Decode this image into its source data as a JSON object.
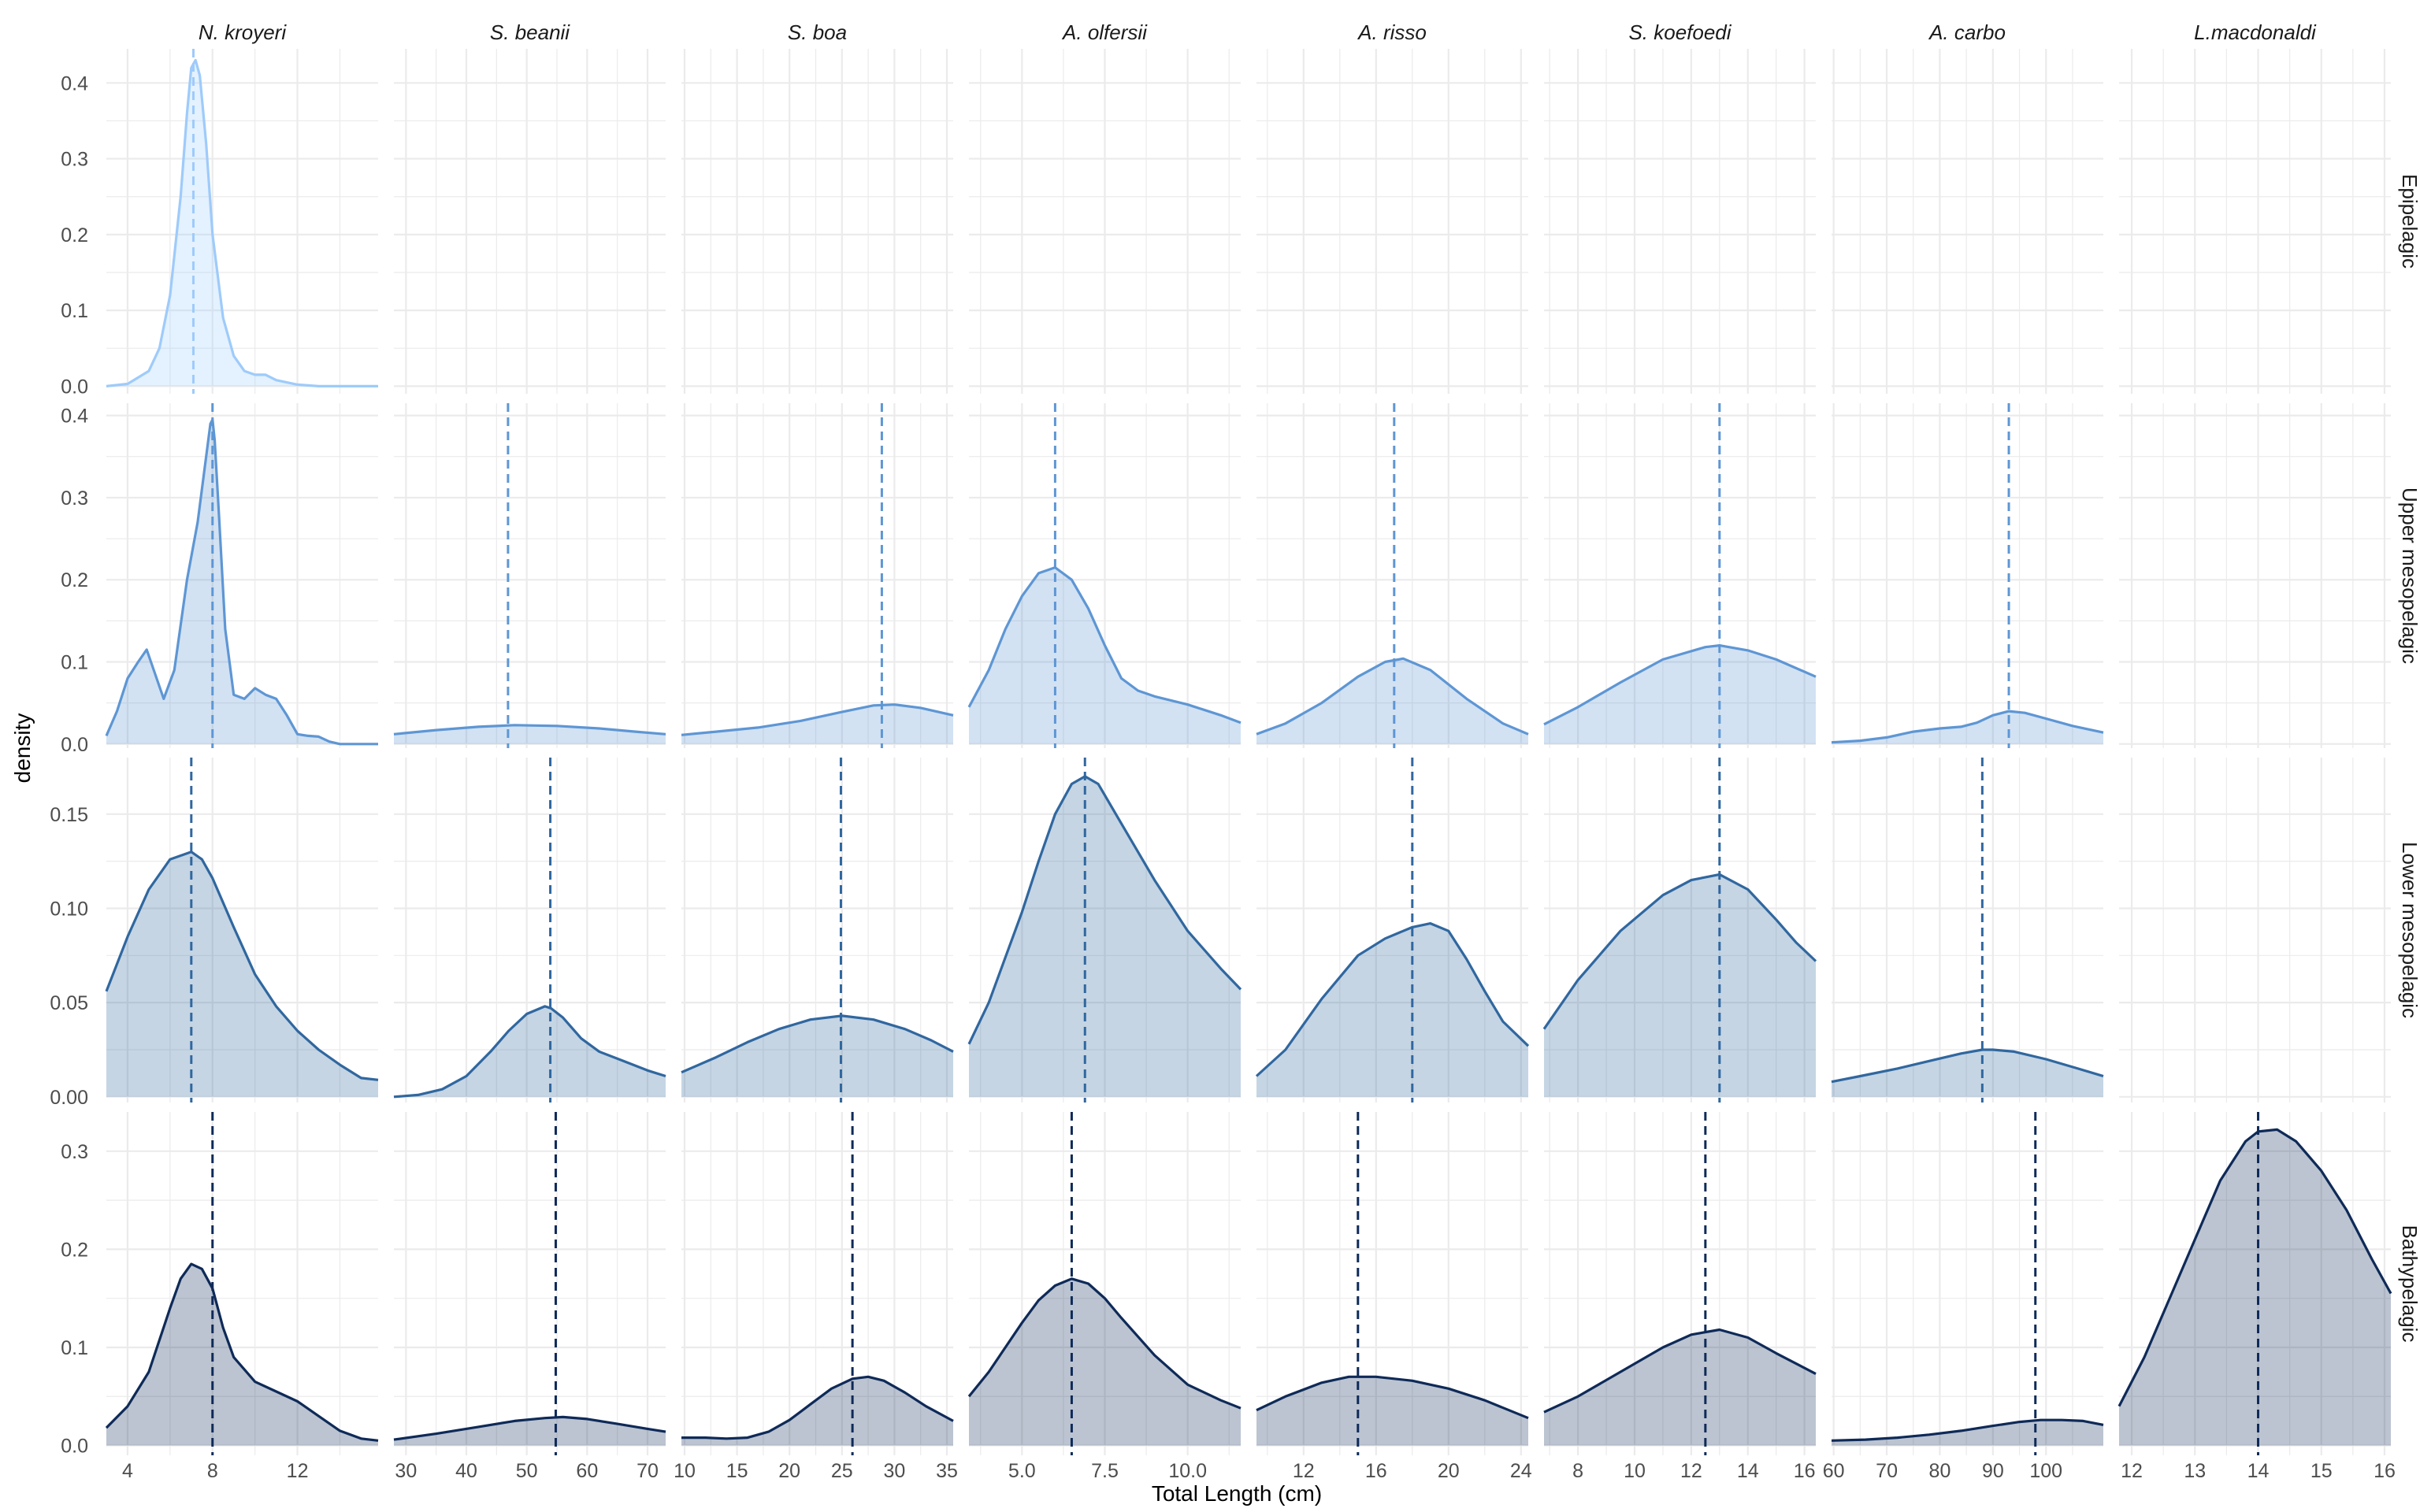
{
  "chart_data": {
    "type": "area",
    "xlabel": "Total Length (cm)",
    "ylabel": "density",
    "colors": {
      "Epipelagic": "#9ecbfa",
      "Upper mesopelagic": "#5e96d4",
      "Lower mesopelagic": "#30679f",
      "Bathypelagic": "#0e2a58",
      "grid": "#ebebeb",
      "tick_text": "#4d4d4d"
    },
    "species": [
      {
        "name": "N. kroyeri",
        "xlim": [
          3.0,
          15.8
        ],
        "ticks": [
          4,
          8,
          12
        ],
        "tick_labels": [
          "4",
          "8",
          "12"
        ]
      },
      {
        "name": "S. beanii",
        "xlim": [
          28,
          73
        ],
        "ticks": [
          30,
          40,
          50,
          60,
          70
        ],
        "tick_labels": [
          "30",
          "40",
          "50",
          "60",
          "70"
        ]
      },
      {
        "name": "S. boa",
        "xlim": [
          9.7,
          35.6
        ],
        "ticks": [
          10,
          15,
          20,
          25,
          30,
          35
        ],
        "tick_labels": [
          "10",
          "15",
          "20",
          "25",
          "30",
          "35"
        ]
      },
      {
        "name": "A. olfersii",
        "xlim": [
          3.4,
          11.6
        ],
        "ticks": [
          5.0,
          7.5,
          10.0
        ],
        "tick_labels": [
          "5.0",
          "7.5",
          "10.0"
        ]
      },
      {
        "name": "A. risso",
        "xlim": [
          9.4,
          24.4
        ],
        "ticks": [
          12,
          16,
          20,
          24
        ],
        "tick_labels": [
          "12",
          "16",
          "20",
          "24"
        ]
      },
      {
        "name": "S. koefoedi",
        "xlim": [
          6.8,
          16.4
        ],
        "ticks": [
          8,
          10,
          12,
          14,
          16
        ],
        "tick_labels": [
          "8",
          "10",
          "12",
          "14",
          "16"
        ]
      },
      {
        "name": "A. carbo",
        "xlim": [
          59.6,
          110.8
        ],
        "ticks": [
          60,
          70,
          80,
          90,
          100
        ],
        "tick_labels": [
          "60",
          "70",
          "80",
          "90",
          "100"
        ]
      },
      {
        "name": "L.macdonaldi",
        "xlim": [
          11.8,
          16.1
        ],
        "ticks": [
          12,
          13,
          14,
          15,
          16
        ],
        "tick_labels": [
          "12",
          "13",
          "14",
          "15",
          "16"
        ]
      }
    ],
    "zones": [
      {
        "name": "Epipelagic",
        "ylim": [
          -0.01,
          0.445
        ],
        "yticks": [
          0.0,
          0.1,
          0.2,
          0.3,
          0.4
        ],
        "ytick_labels": [
          "0.0",
          "0.1",
          "0.2",
          "0.3",
          "0.4"
        ]
      },
      {
        "name": "Upper mesopelagic",
        "ylim": [
          -0.005,
          0.415
        ],
        "yticks": [
          0.0,
          0.1,
          0.2,
          0.3,
          0.4
        ],
        "ytick_labels": [
          "0.0",
          "0.1",
          "0.2",
          "0.3",
          "0.4"
        ]
      },
      {
        "name": "Lower mesopelagic",
        "ylim": [
          -0.003,
          0.18
        ],
        "yticks": [
          0.0,
          0.05,
          0.1,
          0.15
        ],
        "ytick_labels": [
          "0.00",
          "0.05",
          "0.10",
          "0.15"
        ]
      },
      {
        "name": "Bathypelagic",
        "ylim": [
          -0.01,
          0.34
        ],
        "yticks": [
          0.0,
          0.1,
          0.2,
          0.3
        ],
        "ytick_labels": [
          "0.0",
          "0.1",
          "0.2",
          "0.3"
        ]
      }
    ],
    "panels": [
      {
        "zone": "Epipelagic",
        "species": "N. kroyeri",
        "mean": 7.1,
        "x": [
          3.0,
          4.0,
          5.0,
          5.5,
          6.0,
          6.5,
          6.8,
          7.0,
          7.2,
          7.4,
          7.7,
          8.0,
          8.5,
          9.0,
          9.5,
          10.0,
          10.5,
          11.0,
          12.0,
          13.0,
          14.0,
          15.0,
          15.8
        ],
        "y": [
          0.0,
          0.003,
          0.02,
          0.05,
          0.12,
          0.25,
          0.36,
          0.42,
          0.43,
          0.41,
          0.32,
          0.2,
          0.09,
          0.04,
          0.02,
          0.015,
          0.015,
          0.008,
          0.002,
          0.0,
          0.0,
          0.0,
          0.0
        ]
      },
      {
        "zone": "Upper mesopelagic",
        "species": "N. kroyeri",
        "mean": 8.0,
        "x": [
          3.0,
          3.5,
          4.0,
          4.5,
          4.9,
          5.3,
          5.7,
          6.2,
          6.8,
          7.3,
          7.7,
          7.9,
          8.0,
          8.1,
          8.3,
          8.6,
          9.0,
          9.5,
          10.0,
          10.5,
          11.0,
          11.5,
          12.0,
          12.5,
          13.0,
          13.5,
          14.0,
          15.0,
          15.8
        ],
        "y": [
          0.01,
          0.04,
          0.08,
          0.1,
          0.115,
          0.085,
          0.055,
          0.09,
          0.2,
          0.27,
          0.35,
          0.39,
          0.395,
          0.37,
          0.28,
          0.14,
          0.06,
          0.055,
          0.068,
          0.06,
          0.055,
          0.035,
          0.012,
          0.01,
          0.009,
          0.003,
          0.0,
          0.0,
          0.0
        ]
      },
      {
        "zone": "Lower mesopelagic",
        "species": "N. kroyeri",
        "mean": 7.0,
        "x": [
          3.0,
          4.0,
          5.0,
          6.0,
          7.0,
          7.5,
          8.0,
          9.0,
          10.0,
          11.0,
          12.0,
          13.0,
          14.0,
          15.0,
          15.8
        ],
        "y": [
          0.056,
          0.085,
          0.11,
          0.126,
          0.13,
          0.126,
          0.116,
          0.09,
          0.065,
          0.048,
          0.035,
          0.025,
          0.017,
          0.01,
          0.009
        ]
      },
      {
        "zone": "Bathypelagic",
        "species": "N. kroyeri",
        "mean": 8.0,
        "x": [
          3.0,
          4.0,
          5.0,
          6.0,
          6.5,
          7.0,
          7.5,
          8.0,
          8.5,
          9.0,
          10.0,
          11.0,
          12.0,
          13.0,
          14.0,
          15.0,
          15.8
        ],
        "y": [
          0.018,
          0.04,
          0.075,
          0.14,
          0.17,
          0.185,
          0.18,
          0.16,
          0.12,
          0.09,
          0.065,
          0.055,
          0.045,
          0.03,
          0.015,
          0.007,
          0.005
        ]
      },
      {
        "zone": "Upper mesopelagic",
        "species": "S. beanii",
        "mean": 46.9,
        "x": [
          28,
          35,
          42,
          48,
          55,
          62,
          68,
          73
        ],
        "y": [
          0.012,
          0.017,
          0.021,
          0.023,
          0.022,
          0.019,
          0.015,
          0.012
        ]
      },
      {
        "zone": "Lower mesopelagic",
        "species": "S. beanii",
        "mean": 53.9,
        "x": [
          28,
          32,
          36,
          40,
          44,
          47,
          50,
          53,
          54,
          56,
          59,
          62,
          66,
          70,
          73
        ],
        "y": [
          0.0,
          0.001,
          0.004,
          0.011,
          0.024,
          0.035,
          0.044,
          0.048,
          0.047,
          0.042,
          0.031,
          0.024,
          0.019,
          0.014,
          0.011
        ]
      },
      {
        "zone": "Bathypelagic",
        "species": "S. beanii",
        "mean": 54.8,
        "x": [
          28,
          35,
          42,
          48,
          53,
          56,
          60,
          65,
          70,
          73
        ],
        "y": [
          0.006,
          0.012,
          0.019,
          0.025,
          0.028,
          0.029,
          0.027,
          0.022,
          0.017,
          0.014
        ]
      },
      {
        "zone": "Upper mesopelagic",
        "species": "S. boa",
        "mean": 28.8,
        "x": [
          9.7,
          13.0,
          17.0,
          21.0,
          25.0,
          28.0,
          30.0,
          32.5,
          35.6
        ],
        "y": [
          0.011,
          0.015,
          0.02,
          0.028,
          0.039,
          0.047,
          0.048,
          0.044,
          0.035
        ]
      },
      {
        "zone": "Lower mesopelagic",
        "species": "S. boa",
        "mean": 24.9,
        "x": [
          9.7,
          13.0,
          16.0,
          19.0,
          22.0,
          25.0,
          28.0,
          31.0,
          33.5,
          35.6
        ],
        "y": [
          0.013,
          0.021,
          0.029,
          0.036,
          0.041,
          0.043,
          0.041,
          0.036,
          0.03,
          0.024
        ]
      },
      {
        "zone": "Bathypelagic",
        "species": "S. boa",
        "mean": 26.0,
        "x": [
          9.7,
          12.0,
          14.0,
          16.0,
          18.0,
          20.0,
          22.0,
          24.0,
          26.0,
          27.5,
          29.0,
          31.0,
          33.0,
          35.6
        ],
        "y": [
          0.008,
          0.008,
          0.007,
          0.008,
          0.014,
          0.026,
          0.042,
          0.058,
          0.068,
          0.07,
          0.066,
          0.054,
          0.04,
          0.025
        ]
      },
      {
        "zone": "Upper mesopelagic",
        "species": "A. olfersii",
        "mean": 6.0,
        "x": [
          3.4,
          4.0,
          4.5,
          5.0,
          5.5,
          6.0,
          6.5,
          7.0,
          7.5,
          8.0,
          8.5,
          9.0,
          10.0,
          11.0,
          11.6
        ],
        "y": [
          0.045,
          0.09,
          0.14,
          0.18,
          0.208,
          0.215,
          0.2,
          0.165,
          0.12,
          0.08,
          0.065,
          0.058,
          0.048,
          0.035,
          0.026
        ]
      },
      {
        "zone": "Lower mesopelagic",
        "species": "A. olfersii",
        "mean": 6.9,
        "x": [
          3.4,
          4.0,
          5.0,
          5.5,
          6.0,
          6.5,
          6.9,
          7.3,
          8.0,
          9.0,
          10.0,
          11.0,
          11.6
        ],
        "y": [
          0.028,
          0.05,
          0.098,
          0.125,
          0.15,
          0.166,
          0.17,
          0.166,
          0.145,
          0.115,
          0.088,
          0.068,
          0.057
        ]
      },
      {
        "zone": "Bathypelagic",
        "species": "A. olfersii",
        "mean": 6.5,
        "x": [
          3.4,
          4.0,
          5.0,
          5.5,
          6.0,
          6.5,
          7.0,
          7.5,
          8.0,
          9.0,
          10.0,
          11.0,
          11.6
        ],
        "y": [
          0.05,
          0.075,
          0.125,
          0.148,
          0.163,
          0.17,
          0.165,
          0.15,
          0.13,
          0.092,
          0.062,
          0.046,
          0.038
        ]
      },
      {
        "zone": "Upper mesopelagic",
        "species": "A. risso",
        "mean": 17.0,
        "x": [
          9.4,
          11.0,
          13.0,
          15.0,
          16.5,
          17.5,
          19.0,
          21.0,
          23.0,
          24.4
        ],
        "y": [
          0.012,
          0.025,
          0.05,
          0.082,
          0.1,
          0.104,
          0.09,
          0.055,
          0.025,
          0.012
        ]
      },
      {
        "zone": "Lower mesopelagic",
        "species": "A. risso",
        "mean": 18.0,
        "x": [
          9.4,
          11.0,
          13.0,
          15.0,
          16.5,
          18.0,
          19.0,
          20.0,
          21.0,
          22.0,
          23.0,
          24.4
        ],
        "y": [
          0.011,
          0.025,
          0.052,
          0.075,
          0.084,
          0.09,
          0.092,
          0.088,
          0.073,
          0.056,
          0.04,
          0.027
        ]
      },
      {
        "zone": "Bathypelagic",
        "species": "A. risso",
        "mean": 15.0,
        "x": [
          9.4,
          11.0,
          13.0,
          14.5,
          16.0,
          18.0,
          20.0,
          22.0,
          24.4
        ],
        "y": [
          0.036,
          0.05,
          0.064,
          0.07,
          0.07,
          0.066,
          0.058,
          0.046,
          0.028
        ]
      },
      {
        "zone": "Upper mesopelagic",
        "species": "S. koefoedi",
        "mean": 13.0,
        "x": [
          6.8,
          8.0,
          9.5,
          11.0,
          12.5,
          13.0,
          14.0,
          15.0,
          16.4
        ],
        "y": [
          0.024,
          0.045,
          0.075,
          0.103,
          0.118,
          0.12,
          0.114,
          0.103,
          0.082
        ]
      },
      {
        "zone": "Lower mesopelagic",
        "species": "S. koefoedi",
        "mean": 13.0,
        "x": [
          6.8,
          8.0,
          9.5,
          11.0,
          12.0,
          13.0,
          14.0,
          15.0,
          15.7,
          16.4
        ],
        "y": [
          0.036,
          0.062,
          0.088,
          0.107,
          0.115,
          0.118,
          0.11,
          0.094,
          0.082,
          0.072
        ]
      },
      {
        "zone": "Bathypelagic",
        "species": "S. koefoedi",
        "mean": 12.5,
        "x": [
          6.8,
          8.0,
          9.5,
          11.0,
          12.0,
          13.0,
          14.0,
          15.0,
          16.4
        ],
        "y": [
          0.034,
          0.05,
          0.075,
          0.1,
          0.113,
          0.118,
          0.11,
          0.094,
          0.073
        ]
      },
      {
        "zone": "Upper mesopelagic",
        "species": "A. carbo",
        "mean": 93.0,
        "x": [
          59.6,
          65.0,
          70.0,
          75.0,
          80.0,
          84.0,
          87.0,
          90.0,
          93.0,
          96.0,
          100.0,
          105.0,
          110.8
        ],
        "y": [
          0.002,
          0.004,
          0.008,
          0.015,
          0.019,
          0.021,
          0.026,
          0.035,
          0.04,
          0.038,
          0.031,
          0.022,
          0.014
        ]
      },
      {
        "zone": "Lower mesopelagic",
        "species": "A. carbo",
        "mean": 88.0,
        "x": [
          59.6,
          65.0,
          72.0,
          78.0,
          84.0,
          88.0,
          90.0,
          94.0,
          100.0,
          106.0,
          110.8
        ],
        "y": [
          0.008,
          0.011,
          0.015,
          0.019,
          0.023,
          0.025,
          0.025,
          0.024,
          0.02,
          0.015,
          0.011
        ]
      },
      {
        "zone": "Bathypelagic",
        "species": "A. carbo",
        "mean": 98.0,
        "x": [
          59.6,
          66.0,
          72.0,
          78.0,
          84.0,
          90.0,
          95.0,
          99.0,
          103.0,
          107.0,
          110.8
        ],
        "y": [
          0.005,
          0.006,
          0.008,
          0.011,
          0.015,
          0.02,
          0.024,
          0.026,
          0.026,
          0.025,
          0.021
        ]
      },
      {
        "zone": "Bathypelagic",
        "species": "L.macdonaldi",
        "mean": 14.0,
        "x": [
          11.8,
          12.2,
          12.6,
          13.0,
          13.4,
          13.8,
          14.0,
          14.3,
          14.6,
          15.0,
          15.4,
          15.8,
          16.1
        ],
        "y": [
          0.04,
          0.09,
          0.15,
          0.21,
          0.27,
          0.31,
          0.32,
          0.322,
          0.31,
          0.28,
          0.24,
          0.19,
          0.155
        ]
      }
    ]
  }
}
